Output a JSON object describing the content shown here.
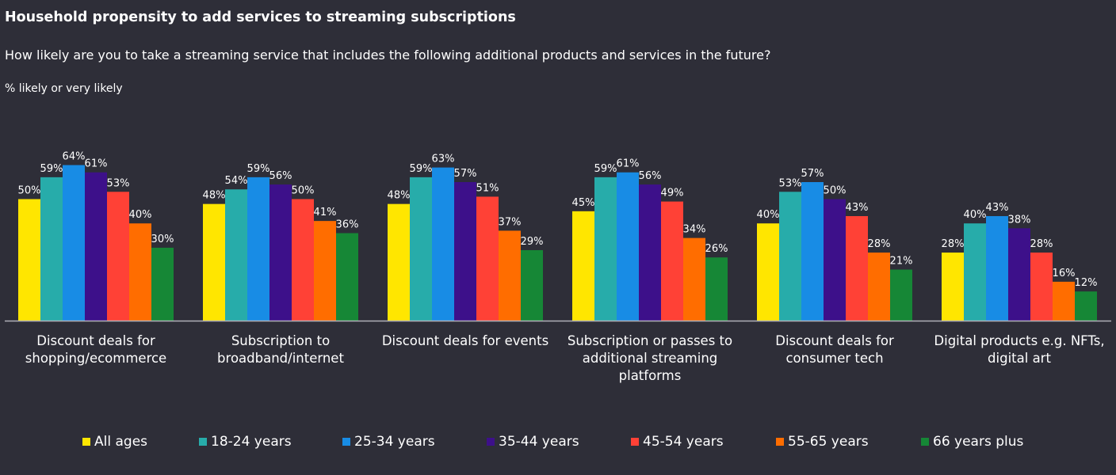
{
  "title": "Household propensity to add services to streaming subscriptions",
  "subtitle": "How likely are you to take a streaming service that includes the following additional products and services in the future?",
  "unit_label": "% likely or very likely",
  "chart_data": {
    "type": "bar",
    "categories": [
      [
        "Discount deals for",
        "shopping/ecommerce"
      ],
      [
        "Subscription to",
        "broadband/internet"
      ],
      [
        "Discount deals for events"
      ],
      [
        "Subscription or passes to",
        "additional streaming",
        "platforms"
      ],
      [
        "Discount deals for",
        "consumer tech"
      ],
      [
        "Digital products e.g. NFTs,",
        "digital art"
      ]
    ],
    "series": [
      {
        "name": "All ages",
        "color": "#ffe600",
        "values": [
          50,
          48,
          48,
          45,
          40,
          28
        ]
      },
      {
        "name": "18-24 years",
        "color": "#27acaa",
        "values": [
          59,
          54,
          59,
          59,
          53,
          40
        ]
      },
      {
        "name": "25-34 years",
        "color": "#188ce5",
        "values": [
          64,
          59,
          63,
          61,
          57,
          43
        ]
      },
      {
        "name": "35-44 years",
        "color": "#3d108a",
        "values": [
          61,
          56,
          57,
          56,
          50,
          38
        ]
      },
      {
        "name": "45-54 years",
        "color": "#ff4136",
        "values": [
          53,
          50,
          51,
          49,
          43,
          28
        ]
      },
      {
        "name": "55-65 years",
        "color": "#ff6d00",
        "values": [
          40,
          41,
          37,
          34,
          28,
          16
        ]
      },
      {
        "name": "66 years plus",
        "color": "#168736",
        "values": [
          30,
          36,
          29,
          26,
          21,
          12
        ]
      }
    ],
    "value_suffix": "%",
    "ylim": [
      0,
      70
    ],
    "grid": false,
    "legend_position": "bottom"
  }
}
